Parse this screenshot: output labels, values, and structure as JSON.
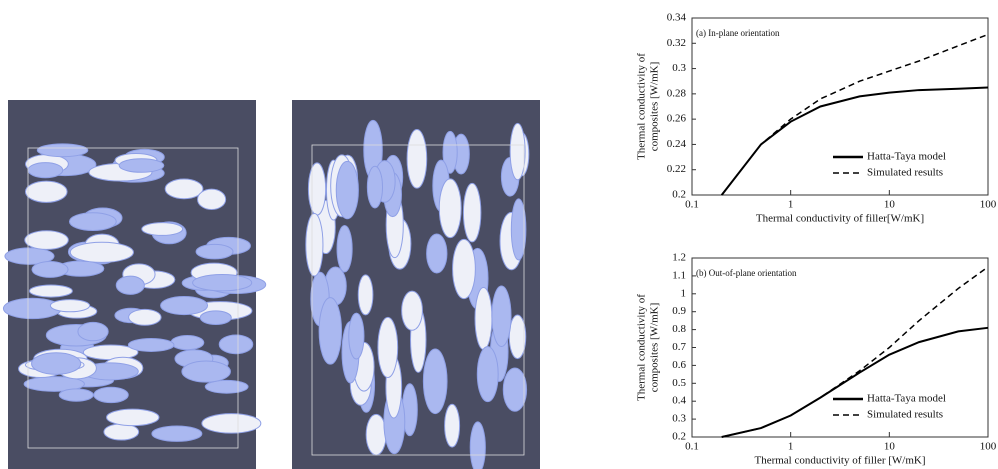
{
  "chart_data": [
    {
      "type": "line",
      "annotation": "(a) In-plane orientation",
      "ylabel": [
        "Thermal conductivity of",
        "composites [W/mK]"
      ],
      "xlabel": "Thermal conductivity of filler[W/mK]",
      "x": [
        0.2,
        0.5,
        1,
        2,
        5,
        10,
        20,
        50,
        100
      ],
      "xscale": "log",
      "xlim": [
        0.1,
        100
      ],
      "xticks": [
        0.1,
        1,
        10,
        100
      ],
      "ylim": [
        0.2,
        0.34
      ],
      "yticks": [
        0.2,
        0.22,
        0.24,
        0.26,
        0.28,
        0.3,
        0.32,
        0.34
      ],
      "legend": "lower right",
      "series": [
        {
          "name": "Hatta-Taya model",
          "color": "#000000",
          "dash": false,
          "values": [
            0.2,
            0.24,
            0.258,
            0.27,
            0.278,
            0.281,
            0.283,
            0.284,
            0.285
          ]
        },
        {
          "name": "Simulated results",
          "color": "#000000",
          "dash": true,
          "values": [
            0.2,
            0.24,
            0.26,
            0.276,
            0.29,
            0.298,
            0.306,
            0.318,
            0.327
          ]
        }
      ]
    },
    {
      "type": "line",
      "annotation": "(b) Out-of-plane orientation",
      "ylabel": [
        "Thermal conductivity of",
        "composites [W/mK]"
      ],
      "xlabel": "Thermal conductivity of filler [W/mK]",
      "x": [
        0.2,
        0.5,
        1,
        2,
        5,
        10,
        20,
        50,
        100
      ],
      "xscale": "log",
      "xlim": [
        0.1,
        100
      ],
      "xticks": [
        0.1,
        1,
        10,
        100
      ],
      "ylim": [
        0.2,
        1.2
      ],
      "yticks": [
        0.2,
        0.3,
        0.4,
        0.5,
        0.6,
        0.7,
        0.8,
        0.9,
        1,
        1.1,
        1.2
      ],
      "legend": "lower right",
      "series": [
        {
          "name": "Hatta-Taya model",
          "color": "#000000",
          "dash": false,
          "values": [
            0.2,
            0.25,
            0.32,
            0.42,
            0.56,
            0.66,
            0.73,
            0.79,
            0.81
          ]
        },
        {
          "name": "Simulated results",
          "color": "#000000",
          "dash": true,
          "values": [
            0.2,
            0.25,
            0.32,
            0.42,
            0.57,
            0.7,
            0.85,
            1.03,
            1.15
          ]
        }
      ]
    }
  ]
}
